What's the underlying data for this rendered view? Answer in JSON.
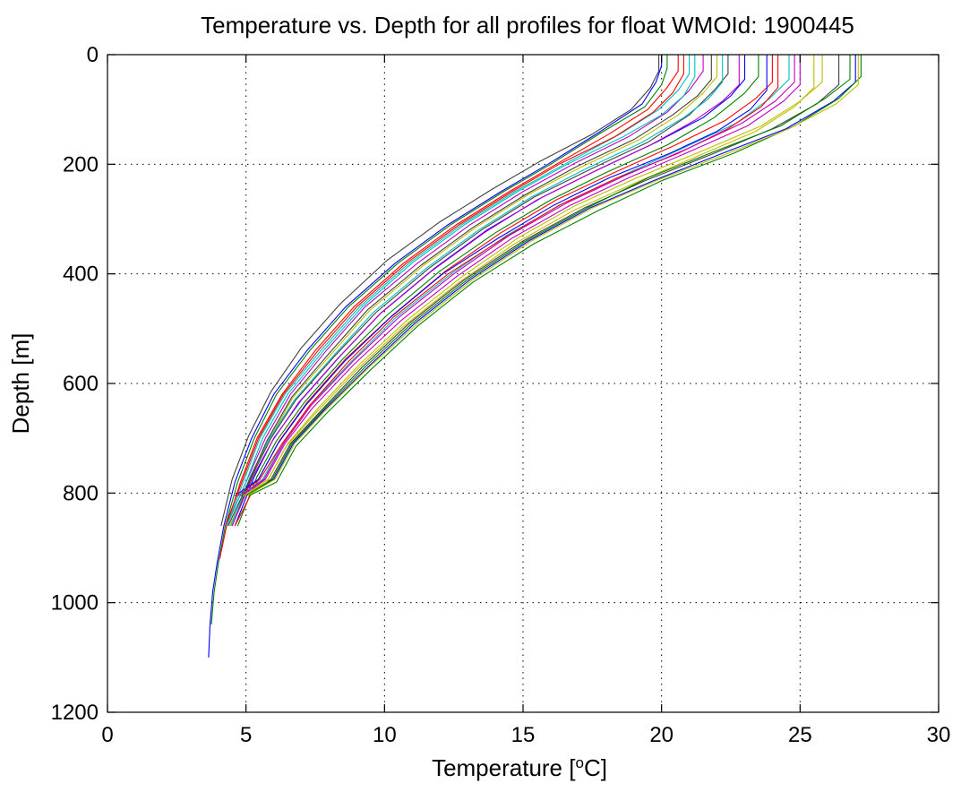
{
  "chart_data": {
    "type": "line",
    "title": "Temperature vs. Depth for all profiles for float WMOId: 1900445",
    "xlabel": "Temperature [",
    "xlabel_sup": "o",
    "xlabel_unit": "C]",
    "ylabel": "Depth [m]",
    "xlim": [
      0,
      30
    ],
    "ylim": [
      0,
      1200
    ],
    "y_reversed": true,
    "xticks": [
      0,
      5,
      10,
      15,
      20,
      25,
      30
    ],
    "yticks": [
      0,
      200,
      400,
      600,
      800,
      1000,
      1200
    ],
    "xtick_labels": [
      "0",
      "5",
      "10",
      "15",
      "20",
      "25",
      "30"
    ],
    "ytick_labels": [
      "0",
      "200",
      "400",
      "600",
      "800",
      "1000",
      "1200"
    ],
    "grid": "dotted",
    "legend": "none",
    "series_colors": [
      "#0000ff",
      "#008000",
      "#ff0000",
      "#00bfbf",
      "#bf00bf",
      "#bfbf00",
      "#404040"
    ],
    "series": [
      {
        "x": [
          20.0,
          20.0,
          19.8,
          19.3,
          17.8,
          15.9,
          14.2,
          12.3,
          10.4,
          8.6,
          7.2,
          6.0,
          5.2,
          4.6,
          4.2,
          3.95,
          3.8,
          3.7,
          3.65
        ],
        "y": [
          0,
          20,
          50,
          90,
          140,
          200,
          250,
          310,
          380,
          460,
          540,
          620,
          700,
          780,
          860,
          930,
          980,
          1040,
          1100
        ]
      },
      {
        "x": [
          20.2,
          20.2,
          20.0,
          19.4,
          17.9,
          16.0,
          14.3,
          12.4,
          10.5,
          8.7,
          7.3,
          6.1,
          5.3,
          4.7,
          4.25,
          4.0,
          3.85,
          3.75
        ],
        "y": [
          0,
          25,
          55,
          95,
          140,
          200,
          250,
          310,
          380,
          460,
          540,
          620,
          700,
          780,
          860,
          930,
          980,
          1040
        ]
      },
      {
        "x": [
          20.6,
          20.6,
          20.2,
          19.5,
          18.1,
          16.2,
          14.5,
          12.6,
          10.7,
          8.9,
          7.5,
          6.3,
          5.4,
          4.8,
          4.3,
          4.05
        ],
        "y": [
          0,
          30,
          60,
          100,
          145,
          200,
          250,
          310,
          380,
          460,
          540,
          620,
          700,
          780,
          860,
          920
        ]
      },
      {
        "x": [
          21.0,
          21.0,
          20.6,
          19.9,
          18.5,
          16.5,
          14.7,
          12.8,
          10.9,
          9.1,
          7.7,
          6.4,
          5.5,
          4.9,
          4.3
        ],
        "y": [
          0,
          35,
          65,
          100,
          145,
          200,
          250,
          310,
          380,
          460,
          540,
          620,
          700,
          780,
          860
        ]
      },
      {
        "x": [
          21.5,
          21.5,
          21.0,
          20.2,
          18.8,
          16.8,
          15.0,
          13.1,
          11.2,
          9.3,
          7.9,
          6.6,
          5.7,
          5.0,
          4.3
        ],
        "y": [
          0,
          30,
          65,
          105,
          150,
          200,
          250,
          310,
          380,
          460,
          540,
          620,
          700,
          780,
          860
        ]
      },
      {
        "x": [
          22.0,
          22.0,
          21.5,
          20.6,
          19.2,
          17.1,
          15.2,
          13.3,
          11.4,
          9.5,
          8.1,
          6.7,
          5.8,
          5.1,
          4.4
        ],
        "y": [
          0,
          40,
          70,
          110,
          155,
          205,
          255,
          315,
          385,
          465,
          545,
          625,
          705,
          785,
          860
        ]
      },
      {
        "x": [
          22.4,
          22.4,
          21.9,
          21.0,
          19.5,
          17.4,
          15.4,
          13.5,
          11.6,
          9.7,
          8.2,
          6.8,
          5.9,
          5.2,
          4.5
        ],
        "y": [
          0,
          35,
          65,
          110,
          160,
          210,
          260,
          320,
          390,
          470,
          550,
          630,
          700,
          770,
          860
        ]
      },
      {
        "x": [
          23.0,
          23.0,
          22.5,
          21.5,
          19.8,
          17.7,
          15.7,
          13.7,
          11.8,
          9.9,
          8.4,
          7.0,
          6.0,
          5.3,
          4.6
        ],
        "y": [
          0,
          45,
          75,
          115,
          160,
          210,
          260,
          320,
          390,
          470,
          550,
          630,
          700,
          770,
          860
        ]
      },
      {
        "x": [
          23.5,
          23.5,
          23.0,
          21.9,
          20.2,
          18.0,
          16.0,
          14.0,
          12.0,
          10.1,
          8.5,
          7.1,
          6.1,
          5.4,
          4.7
        ],
        "y": [
          0,
          40,
          70,
          115,
          165,
          215,
          265,
          325,
          395,
          475,
          555,
          635,
          705,
          770,
          860
        ]
      },
      {
        "x": [
          24.0,
          24.0,
          23.4,
          22.3,
          20.5,
          18.3,
          16.2,
          14.2,
          12.2,
          10.3,
          8.6,
          7.2,
          6.2,
          5.5,
          4.6
        ],
        "y": [
          0,
          50,
          80,
          120,
          165,
          215,
          265,
          325,
          395,
          475,
          555,
          635,
          705,
          770,
          860
        ]
      },
      {
        "x": [
          24.6,
          24.6,
          23.9,
          22.7,
          20.8,
          18.6,
          16.5,
          14.4,
          12.4,
          10.4,
          8.8,
          7.3,
          6.3,
          5.6,
          4.8
        ],
        "y": [
          0,
          45,
          80,
          125,
          170,
          220,
          270,
          330,
          400,
          480,
          560,
          640,
          710,
          775,
          805
        ]
      },
      {
        "x": [
          25.0,
          25.0,
          24.4,
          23.1,
          21.1,
          18.8,
          16.7,
          14.6,
          12.6,
          10.6,
          8.9,
          7.4,
          6.4,
          5.7,
          4.9
        ],
        "y": [
          0,
          55,
          85,
          130,
          175,
          225,
          275,
          335,
          405,
          485,
          565,
          645,
          710,
          775,
          805
        ]
      },
      {
        "x": [
          25.8,
          25.8,
          25.0,
          23.6,
          21.5,
          19.1,
          16.9,
          14.8,
          12.8,
          10.8,
          9.1,
          7.6,
          6.5,
          5.8,
          4.9
        ],
        "y": [
          0,
          50,
          85,
          130,
          175,
          225,
          275,
          335,
          405,
          485,
          565,
          645,
          710,
          775,
          805
        ]
      },
      {
        "x": [
          26.4,
          26.4,
          25.6,
          24.0,
          21.9,
          19.4,
          17.2,
          15.0,
          12.9,
          10.9,
          9.2,
          7.7,
          6.6,
          5.9,
          5.0
        ],
        "y": [
          0,
          55,
          90,
          135,
          180,
          230,
          280,
          340,
          410,
          490,
          570,
          650,
          710,
          775,
          805
        ]
      },
      {
        "x": [
          27.0,
          27.0,
          26.2,
          24.5,
          22.2,
          19.7,
          17.4,
          15.2,
          13.1,
          11.1,
          9.4,
          7.8,
          6.7,
          6.0,
          5.0
        ],
        "y": [
          0,
          50,
          85,
          135,
          180,
          230,
          280,
          340,
          410,
          490,
          570,
          650,
          710,
          775,
          805
        ]
      },
      {
        "x": [
          27.2,
          27.2,
          26.4,
          24.8,
          22.6,
          20.0,
          17.7,
          15.4,
          13.2,
          11.2,
          9.5,
          7.9,
          6.8,
          6.1,
          5.1
        ],
        "y": [
          0,
          40,
          80,
          130,
          180,
          230,
          285,
          345,
          415,
          495,
          575,
          655,
          715,
          780,
          805
        ]
      },
      {
        "x": [
          24.2,
          24.2,
          23.6,
          22.4,
          20.6,
          18.4,
          16.3,
          14.3,
          12.3,
          10.3,
          8.7,
          7.3,
          6.3,
          5.5,
          4.7
        ],
        "y": [
          0,
          60,
          95,
          135,
          180,
          225,
          275,
          335,
          400,
          480,
          560,
          640,
          710,
          775,
          805
        ]
      },
      {
        "x": [
          21.2,
          21.2,
          20.8,
          20.0,
          18.6,
          16.6,
          14.8,
          12.9,
          11.0,
          9.2,
          7.8,
          6.5,
          5.6,
          5.0,
          4.3
        ],
        "y": [
          0,
          40,
          75,
          110,
          150,
          200,
          250,
          310,
          380,
          460,
          540,
          620,
          700,
          780,
          860
        ]
      },
      {
        "x": [
          22.8,
          22.8,
          22.2,
          21.2,
          19.6,
          17.5,
          15.5,
          13.6,
          11.7,
          9.8,
          8.3,
          6.9,
          5.95,
          5.25,
          4.5
        ],
        "y": [
          0,
          55,
          85,
          120,
          165,
          215,
          265,
          325,
          395,
          475,
          555,
          635,
          705,
          770,
          860
        ]
      },
      {
        "x": [
          25.5,
          25.5,
          24.8,
          23.4,
          21.3,
          19.0,
          16.8,
          14.7,
          12.7,
          10.7,
          9.0,
          7.5,
          6.45,
          5.75,
          4.9
        ],
        "y": [
          0,
          60,
          95,
          140,
          185,
          235,
          285,
          345,
          415,
          495,
          575,
          655,
          715,
          780,
          805
        ]
      },
      {
        "x": [
          19.9,
          19.9,
          19.6,
          18.9,
          17.5,
          15.6,
          13.9,
          12.0,
          10.1,
          8.4,
          7.0,
          5.9,
          5.1,
          4.5,
          4.1
        ],
        "y": [
          0,
          30,
          60,
          100,
          145,
          195,
          245,
          305,
          375,
          455,
          535,
          615,
          695,
          775,
          860
        ]
      },
      {
        "x": [
          23.8,
          23.8,
          23.2,
          22.0,
          20.3,
          18.1,
          16.1,
          14.1,
          12.1,
          10.2,
          8.55,
          7.15,
          6.15,
          5.45,
          4.6
        ],
        "y": [
          0,
          65,
          100,
          140,
          180,
          225,
          275,
          335,
          400,
          480,
          560,
          640,
          710,
          775,
          805
        ]
      },
      {
        "x": [
          26.8,
          26.8,
          25.9,
          24.3,
          22.0,
          19.5,
          17.3,
          15.1,
          13.0,
          11.0,
          9.3,
          7.75,
          6.65,
          5.95,
          5.0
        ],
        "y": [
          0,
          45,
          80,
          130,
          175,
          225,
          280,
          340,
          410,
          490,
          570,
          650,
          710,
          775,
          805
        ]
      },
      {
        "x": [
          20.8,
          20.8,
          20.4,
          19.7,
          18.3,
          16.3,
          14.6,
          12.7,
          10.8,
          9.0,
          7.6,
          6.35,
          5.45,
          4.85,
          4.25
        ],
        "y": [
          0,
          35,
          70,
          105,
          150,
          200,
          250,
          310,
          380,
          460,
          540,
          620,
          700,
          780,
          860
        ]
      },
      {
        "x": [
          22.2,
          22.2,
          21.7,
          20.8,
          19.3,
          17.2,
          15.3,
          13.4,
          11.5,
          9.6,
          8.15,
          6.75,
          5.85,
          5.15,
          4.45
        ],
        "y": [
          0,
          50,
          80,
          115,
          160,
          210,
          260,
          320,
          390,
          470,
          550,
          630,
          700,
          770,
          860
        ]
      },
      {
        "x": [
          24.8,
          24.8,
          24.1,
          22.9,
          21.0,
          18.7,
          16.6,
          14.5,
          12.5,
          10.5,
          8.85,
          7.35,
          6.35,
          5.65,
          4.8
        ],
        "y": [
          0,
          50,
          85,
          125,
          170,
          220,
          270,
          330,
          400,
          480,
          560,
          640,
          710,
          775,
          805
        ]
      },
      {
        "x": [
          27.1,
          27.1,
          26.3,
          24.6,
          22.4,
          19.8,
          17.5,
          15.3,
          13.2,
          11.2,
          9.45,
          7.85,
          6.75,
          6.05,
          5.05
        ],
        "y": [
          0,
          55,
          90,
          135,
          180,
          230,
          280,
          340,
          410,
          490,
          570,
          650,
          710,
          775,
          805
        ]
      },
      {
        "x": [
          21.8,
          21.8,
          21.3,
          20.4,
          19.0,
          16.9,
          15.1,
          13.2,
          11.3,
          9.4,
          8.0,
          6.65,
          5.75,
          5.05,
          4.35
        ],
        "y": [
          0,
          45,
          75,
          110,
          155,
          205,
          255,
          315,
          385,
          465,
          545,
          625,
          705,
          785,
          860
        ]
      }
    ]
  }
}
